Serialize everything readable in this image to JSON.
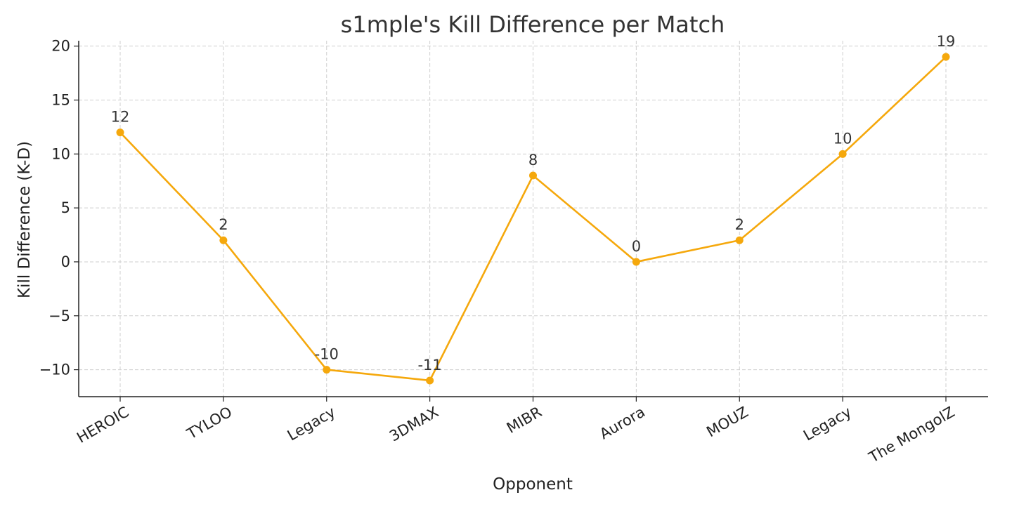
{
  "chart_data": {
    "type": "line",
    "title": "s1mple's Kill Difference per Match",
    "xlabel": "Opponent",
    "ylabel": "Kill Difference (K-D)",
    "categories": [
      "HEROIC",
      "TYLOO",
      "Legacy",
      "3DMAX",
      "MIBR",
      "Aurora",
      "MOUZ",
      "Legacy",
      "The MongolZ"
    ],
    "values": [
      12,
      2,
      -10,
      -11,
      8,
      0,
      2,
      10,
      19
    ],
    "data_labels": [
      "12",
      "2",
      "-10",
      "-11",
      "8",
      "0",
      "2",
      "10",
      "19"
    ],
    "ylim": [
      -12.5,
      20.5
    ],
    "yticks": [
      -10,
      -5,
      0,
      5,
      10,
      15,
      20
    ],
    "ytick_labels": [
      "−10",
      "−5",
      "0",
      "5",
      "10",
      "15",
      "20"
    ],
    "grid": true,
    "color": "#F5A80C"
  }
}
